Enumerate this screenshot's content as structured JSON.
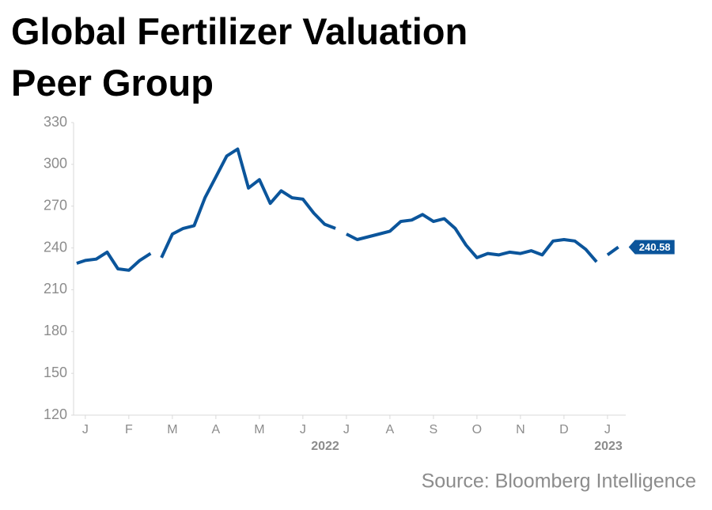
{
  "chart_data": {
    "type": "line",
    "title": [
      "Global Fertilizer Valuation",
      "Peer Group"
    ],
    "source": "Source: Bloomberg Intelligence",
    "year_labels": [
      "2022",
      "2023"
    ],
    "x": [
      -0.2,
      0,
      0.25,
      0.5,
      0.75,
      1.0,
      1.25,
      1.5,
      1.62,
      1.75,
      2.0,
      2.25,
      2.5,
      2.75,
      3.0,
      3.25,
      3.5,
      3.75,
      4.0,
      4.25,
      4.5,
      4.75,
      5.0,
      5.25,
      5.5,
      5.75,
      5.87,
      6.0,
      6.25,
      6.5,
      6.75,
      7.0,
      7.25,
      7.5,
      7.75,
      8.0,
      8.25,
      8.5,
      8.75,
      9.0,
      9.25,
      9.5,
      9.75,
      10.0,
      10.25,
      10.5,
      10.75,
      11.0,
      11.25,
      11.5,
      11.75,
      11.87,
      12.0,
      12.25
    ],
    "series": [
      {
        "name": "Peer Group",
        "color": "#0b559b",
        "values": [
          229,
          231,
          232,
          237,
          225,
          224,
          231,
          236,
          null,
          233,
          250,
          254,
          256,
          276,
          291,
          306,
          311,
          283,
          289,
          272,
          281,
          276,
          275,
          265,
          257,
          254,
          null,
          250,
          246,
          248,
          250,
          252,
          259,
          260,
          264,
          259,
          261,
          254,
          242,
          233,
          236,
          235,
          237,
          236,
          238,
          235,
          245,
          246,
          245,
          239,
          230,
          null,
          235,
          240.58
        ]
      }
    ],
    "xlim": [
      -0.27,
      12.42
    ],
    "xticks": [
      {
        "value": 0,
        "label": "J"
      },
      {
        "value": 1,
        "label": "F"
      },
      {
        "value": 2,
        "label": "M"
      },
      {
        "value": 3,
        "label": "A"
      },
      {
        "value": 4,
        "label": "M"
      },
      {
        "value": 5,
        "label": "J"
      },
      {
        "value": 6,
        "label": "J"
      },
      {
        "value": 7,
        "label": "A"
      },
      {
        "value": 8,
        "label": "S"
      },
      {
        "value": 9,
        "label": "O"
      },
      {
        "value": 10,
        "label": "N"
      },
      {
        "value": 11,
        "label": "D"
      },
      {
        "value": 12,
        "label": "J"
      }
    ],
    "ylim": [
      120,
      330
    ],
    "yticks": [
      120,
      150,
      180,
      210,
      240,
      270,
      300,
      330
    ],
    "grid": false
  }
}
